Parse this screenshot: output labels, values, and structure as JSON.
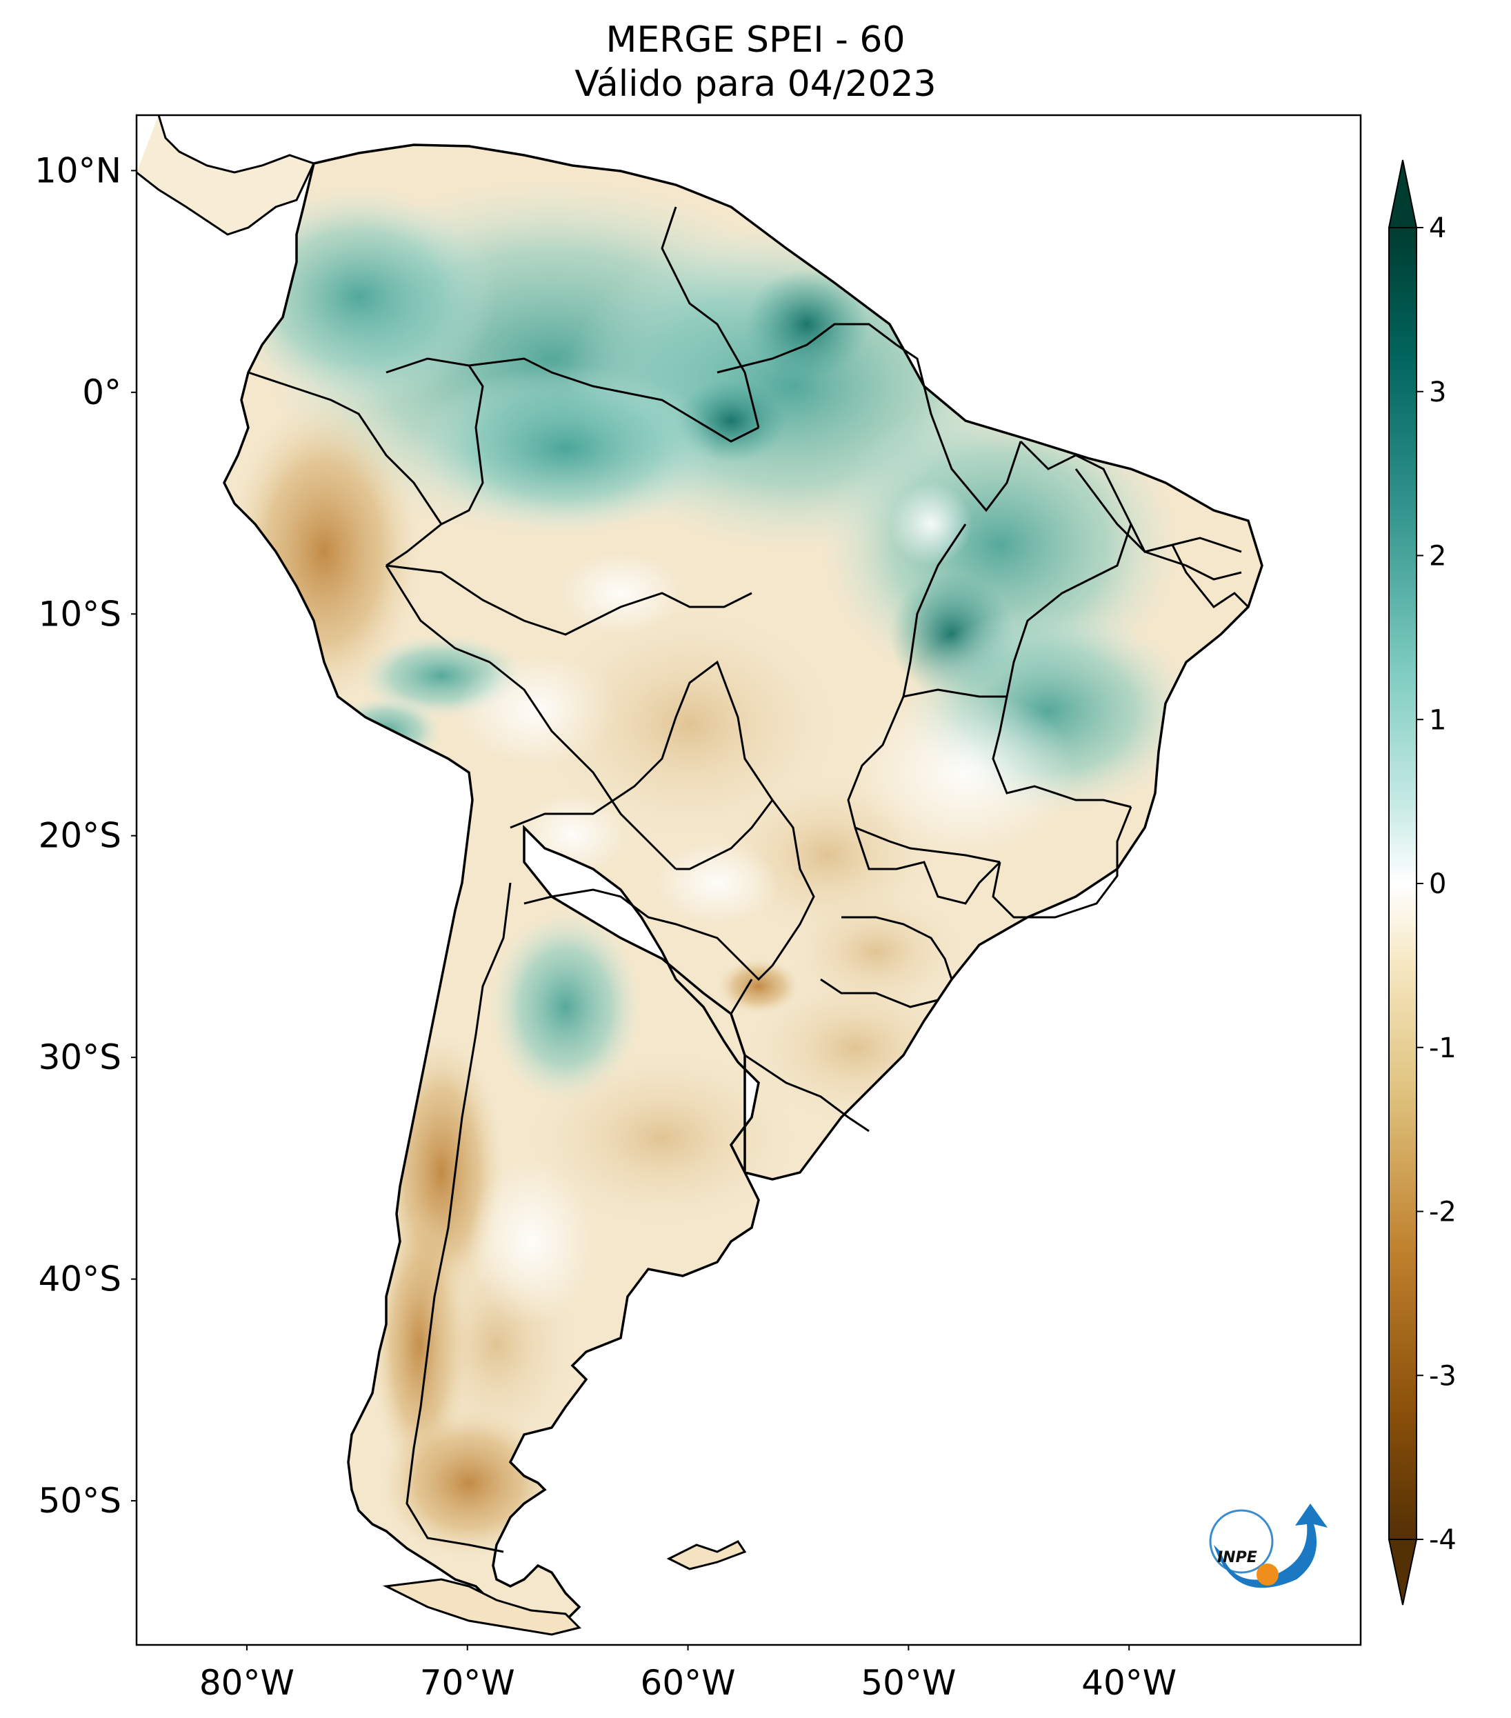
{
  "title_line1": "MERGE   SPEI - 60",
  "title_line2": "Válido para 04/2023",
  "lat_labels": [
    {
      "label": "10°N",
      "lat": 10
    },
    {
      "label": "0°",
      "lat": 0
    },
    {
      "label": "10°S",
      "lat": -10
    },
    {
      "label": "20°S",
      "lat": -20
    },
    {
      "label": "30°S",
      "lat": -30
    },
    {
      "label": "40°S",
      "lat": -40
    },
    {
      "label": "50°S",
      "lat": -50
    }
  ],
  "lon_labels": [
    {
      "label": "80°W",
      "lon": -80
    },
    {
      "label": "70°W",
      "lon": -70
    },
    {
      "label": "60°W",
      "lon": -60
    },
    {
      "label": "50°W",
      "lon": -50
    },
    {
      "label": "40°W",
      "lon": -40
    }
  ],
  "extent": {
    "lon_min": -85,
    "lon_max": -29.5,
    "lat_min": -56.5,
    "lat_max": 12.5
  },
  "colorbar": {
    "ticks": [
      {
        "label": "4",
        "value": 4
      },
      {
        "label": "3",
        "value": 3
      },
      {
        "label": "2",
        "value": 2
      },
      {
        "label": "1",
        "value": 1
      },
      {
        "label": "0",
        "value": 0
      },
      {
        "label": "-1",
        "value": -1
      },
      {
        "label": "-2",
        "value": -2
      },
      {
        "label": "-3",
        "value": -3
      },
      {
        "label": "-4",
        "value": -4
      }
    ],
    "min": -4,
    "max": 4,
    "colors": [
      "#543005",
      "#8c510a",
      "#bf812d",
      "#dfc27d",
      "#f6e8c3",
      "#ffffff",
      "#c7eae5",
      "#80cdc1",
      "#35978f",
      "#01665e",
      "#003c30"
    ]
  },
  "logo": {
    "text": "INPE"
  }
}
